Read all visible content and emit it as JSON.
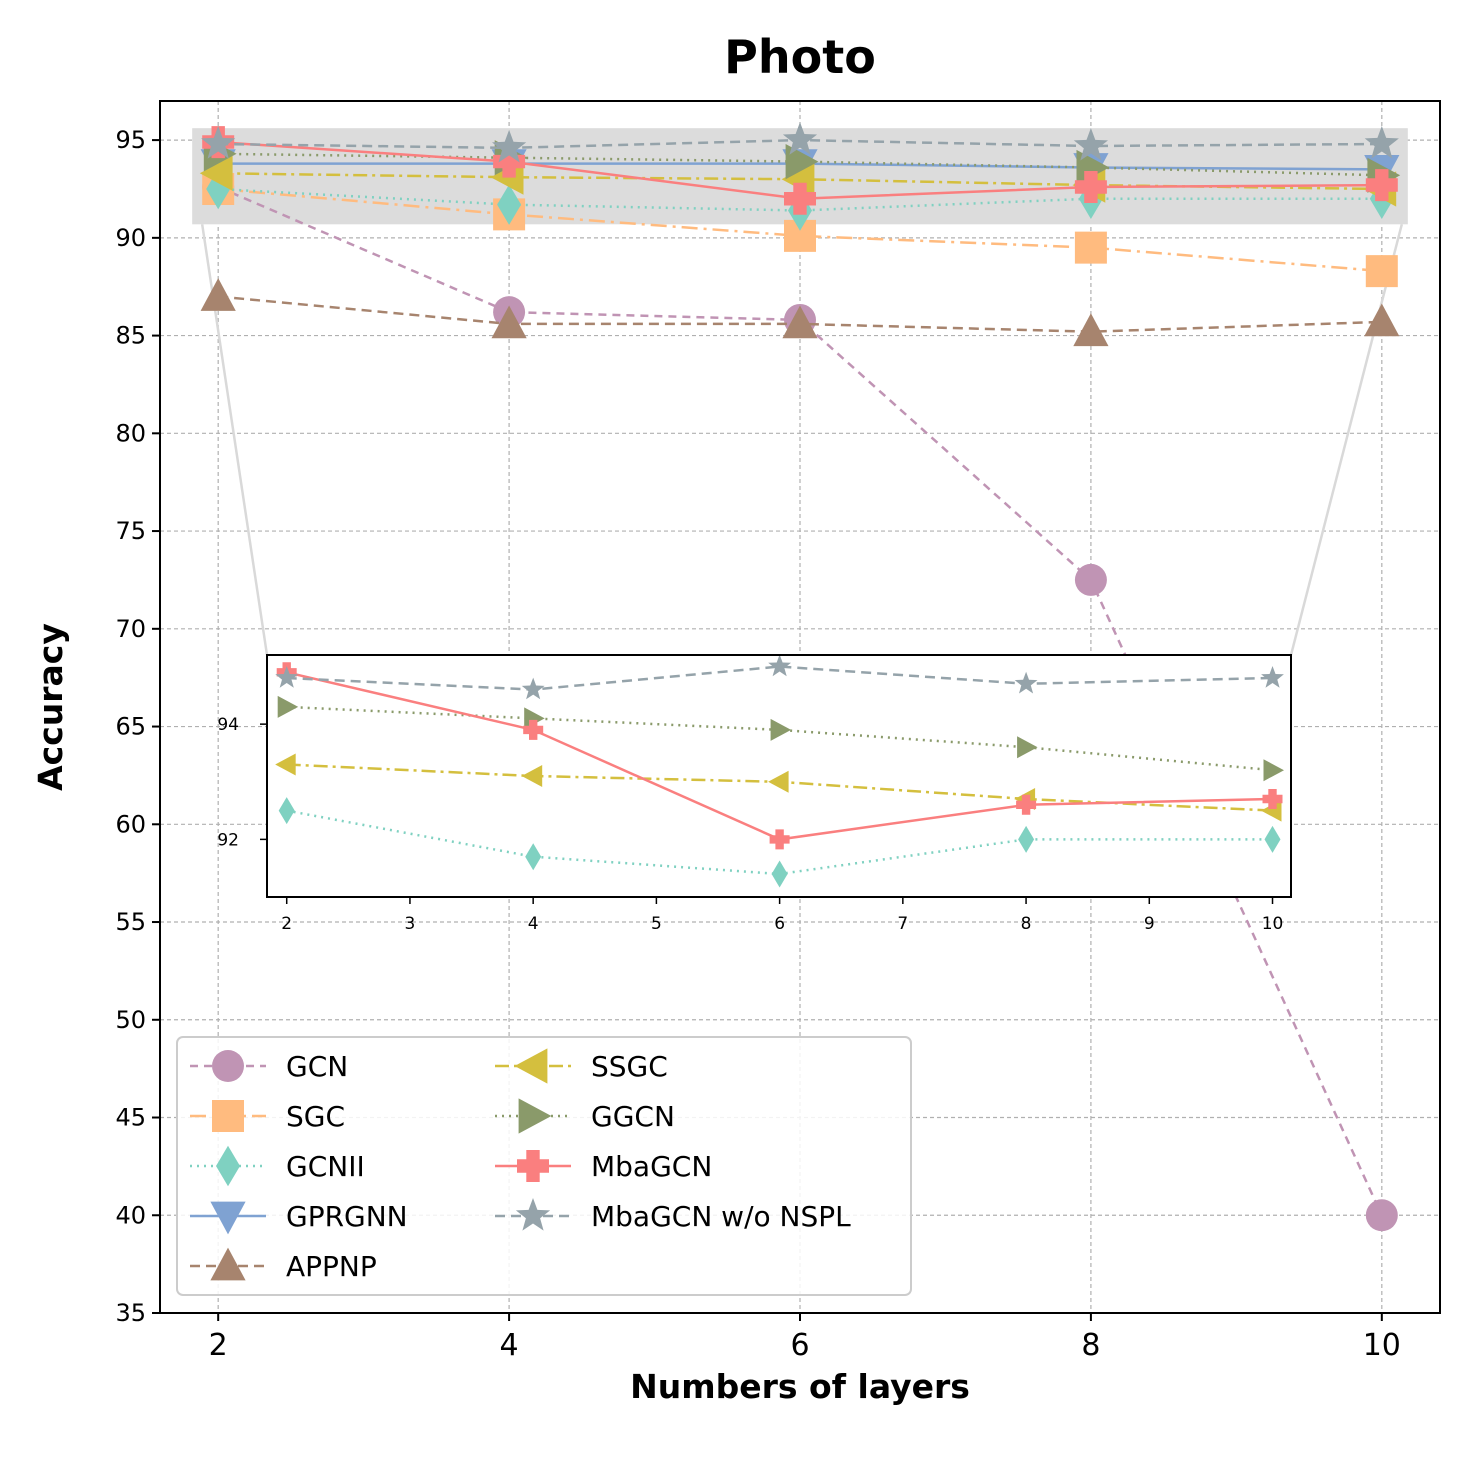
{
  "chart_data": {
    "type": "line",
    "title": "Photo",
    "xlabel": "Numbers of layers",
    "ylabel": "Accuracy",
    "x": [
      2,
      4,
      6,
      8,
      10
    ],
    "xticks": [
      "2",
      "4",
      "6",
      "8",
      "10"
    ],
    "yticks": [
      "35",
      "40",
      "45",
      "50",
      "55",
      "60",
      "65",
      "70",
      "75",
      "80",
      "85",
      "90",
      "95"
    ],
    "ylim": [
      35,
      97
    ],
    "grid": true,
    "legend_position": "lower-left",
    "series": [
      {
        "name": "GCN",
        "color": "#c094b4",
        "marker": "circle",
        "dash": "8,6",
        "values": [
          92.6,
          86.2,
          85.8,
          72.5,
          40.0
        ]
      },
      {
        "name": "SGC",
        "color": "#ffbb7f",
        "marker": "square",
        "dash": "16,6,3,6",
        "values": [
          92.5,
          91.2,
          90.1,
          89.5,
          88.3
        ]
      },
      {
        "name": "GCNII",
        "color": "#7fd1c1",
        "marker": "thin_diamond",
        "dash": "2,5",
        "values": [
          92.5,
          91.7,
          91.4,
          92.0,
          92.0
        ]
      },
      {
        "name": "GPRGNN",
        "color": "#7fa2d2",
        "marker": "triangle_down",
        "dash": "",
        "values": [
          93.8,
          93.8,
          93.8,
          93.6,
          93.5
        ]
      },
      {
        "name": "APPNP",
        "color": "#a7846e",
        "marker": "triangle_up",
        "dash": "10,6",
        "values": [
          87.0,
          85.6,
          85.6,
          85.2,
          85.7
        ]
      },
      {
        "name": "SSGC",
        "color": "#d4bf3e",
        "marker": "triangle_left",
        "dash": "14,5,3,5",
        "values": [
          93.3,
          93.1,
          93.0,
          92.7,
          92.5
        ]
      },
      {
        "name": "GGCN",
        "color": "#8a9a6a",
        "marker": "triangle_right",
        "dash": "2,5",
        "values": [
          94.3,
          94.1,
          93.9,
          93.6,
          93.2
        ]
      },
      {
        "name": "MbaGCN",
        "color": "#fa7f7f",
        "marker": "plus",
        "dash": "",
        "values": [
          94.9,
          93.9,
          92.0,
          92.6,
          92.7
        ]
      },
      {
        "name": "MbaGCN w/o NSPL",
        "color": "#95a3aa",
        "marker": "star",
        "dash": "10,6",
        "values": [
          94.8,
          94.6,
          95.0,
          94.7,
          94.8
        ]
      }
    ],
    "inset": {
      "xlim": [
        2,
        10
      ],
      "ylim": [
        91.0,
        95.2
      ],
      "xticks": [
        "2",
        "3",
        "4",
        "5",
        "6",
        "7",
        "8",
        "9",
        "10"
      ],
      "yticks": [
        "92",
        "94"
      ],
      "series_shown": [
        "GCNII",
        "SSGC",
        "GGCN",
        "MbaGCN",
        "MbaGCN w/o NSPL"
      ],
      "zoom_region": {
        "x": [
          2,
          10
        ],
        "y": [
          91.0,
          95.2
        ]
      }
    }
  }
}
